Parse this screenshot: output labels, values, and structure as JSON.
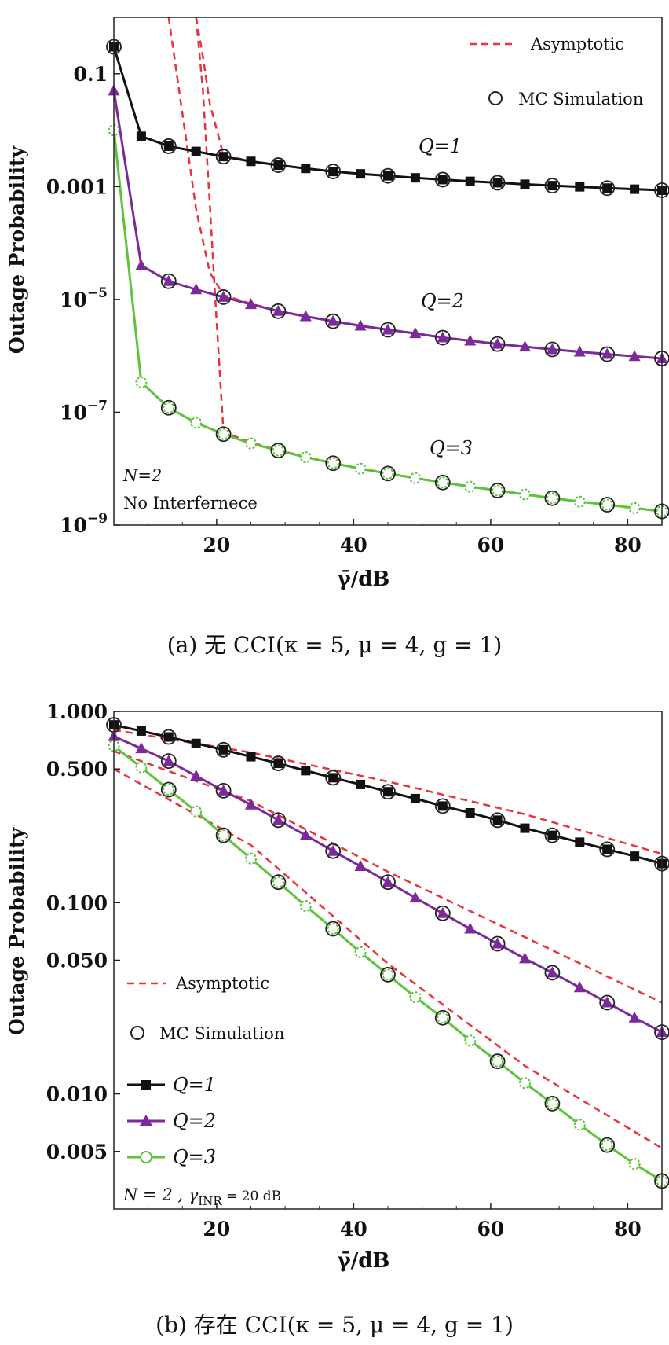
{
  "chart_data": [
    {
      "type": "line",
      "panel": "a",
      "caption": "(a)   无 CCI(κ = 5, μ = 4, g = 1)",
      "xlabel": "γ̄/dB",
      "ylabel": "Outage Probability",
      "xlim": [
        5,
        85
      ],
      "ylim": [
        1e-09,
        1
      ],
      "yscale": "log",
      "xticks": [
        20,
        40,
        60,
        80
      ],
      "yticks": [
        {
          "value": 0.1,
          "label": "0.1"
        },
        {
          "value": 0.001,
          "label": "0.001"
        },
        {
          "value": 1e-05,
          "label": "10−5",
          "base": "10",
          "exp": "−5"
        },
        {
          "value": 1e-07,
          "label": "10−7",
          "base": "10",
          "exp": "−7"
        },
        {
          "value": 1e-09,
          "label": "10−9",
          "base": "10",
          "exp": "−9"
        }
      ],
      "legend": {
        "placement": "top-right",
        "items": [
          "Asymptotic",
          "MC Simulation"
        ]
      },
      "annotations": {
        "n": "N=2",
        "note": "No Interfernece"
      },
      "series": [
        {
          "name": "Q=1",
          "marker": "square",
          "color": "#111111",
          "x": [
            5,
            9,
            13,
            17,
            21,
            25,
            29,
            33,
            37,
            41,
            45,
            49,
            53,
            57,
            61,
            65,
            69,
            73,
            77,
            81,
            85
          ],
          "y": [
            0.3,
            0.0078,
            0.0052,
            0.0042,
            0.0034,
            0.0028,
            0.0024,
            0.0021,
            0.00185,
            0.00168,
            0.00155,
            0.00143,
            0.00133,
            0.00124,
            0.00117,
            0.0011,
            0.00104,
            0.00099,
            0.00094,
            0.0009,
            0.00086
          ],
          "mc_x": [
            5,
            13,
            21,
            29,
            37,
            45,
            53,
            61,
            69,
            77,
            85
          ],
          "mc_y": [
            0.3,
            0.0052,
            0.0034,
            0.0024,
            0.00185,
            0.00155,
            0.00133,
            0.00117,
            0.00104,
            0.00094,
            0.00086
          ],
          "asym_x": [
            17,
            18,
            19,
            21,
            25,
            29,
            33,
            37,
            41,
            45,
            49,
            53,
            57,
            61,
            65,
            69,
            73,
            77,
            81,
            85
          ],
          "asym_y": [
            1,
            0.2,
            0.03,
            0.0036,
            0.0028,
            0.0024,
            0.0021,
            0.00185,
            0.00168,
            0.00155,
            0.00143,
            0.00133,
            0.00124,
            0.00117,
            0.0011,
            0.00104,
            0.00099,
            0.00094,
            0.0009,
            0.00086
          ]
        },
        {
          "name": "Q=2",
          "marker": "triangle",
          "color": "#7a2a9a",
          "x": [
            5,
            9,
            13,
            17,
            21,
            25,
            29,
            33,
            37,
            41,
            45,
            49,
            53,
            57,
            61,
            65,
            69,
            73,
            77,
            81,
            85
          ],
          "y": [
            0.05,
            4e-05,
            2.1e-05,
            1.5e-05,
            1.1e-05,
            8.2e-06,
            6.2e-06,
            5e-06,
            4.1e-06,
            3.4e-06,
            2.9e-06,
            2.5e-06,
            2.1e-06,
            1.85e-06,
            1.62e-06,
            1.45e-06,
            1.3e-06,
            1.18e-06,
            1.07e-06,
            9.8e-07,
            9e-07
          ],
          "mc_x": [
            13,
            21,
            29,
            37,
            45,
            53,
            61,
            69,
            77,
            85
          ],
          "mc_y": [
            2.1e-05,
            1.1e-05,
            6.2e-06,
            4.1e-06,
            2.9e-06,
            2.1e-06,
            1.62e-06,
            1.3e-06,
            1.07e-06,
            9e-07
          ],
          "asym_x": [
            13,
            15,
            17,
            19,
            21,
            25,
            29,
            33,
            37,
            41,
            45,
            49,
            53,
            57,
            61,
            65,
            69,
            73,
            77,
            81,
            85
          ],
          "asym_y": [
            1,
            0.02,
            0.0004,
            3e-05,
            1.2e-05,
            8.4e-06,
            6.3e-06,
            5.05e-06,
            4.15e-06,
            3.45e-06,
            2.93e-06,
            2.52e-06,
            2.12e-06,
            1.87e-06,
            1.63e-06,
            1.46e-06,
            1.31e-06,
            1.19e-06,
            1.08e-06,
            9.9e-07,
            9e-07
          ]
        },
        {
          "name": "Q=3",
          "marker": "circle-open",
          "color": "#5cc33a",
          "x": [
            5,
            9,
            13,
            17,
            21,
            25,
            29,
            33,
            37,
            41,
            45,
            49,
            53,
            57,
            61,
            65,
            69,
            73,
            77,
            81,
            85
          ],
          "y": [
            0.01,
            3.4e-07,
            1.2e-07,
            6.5e-08,
            4.1e-08,
            2.8e-08,
            2.1e-08,
            1.6e-08,
            1.25e-08,
            1e-08,
            8.2e-09,
            6.8e-09,
            5.7e-09,
            4.8e-09,
            4.1e-09,
            3.5e-09,
            3e-09,
            2.6e-09,
            2.3e-09,
            2e-09,
            1.75e-09
          ],
          "mc_x": [
            13,
            21,
            29,
            37,
            45,
            53,
            61,
            69,
            77,
            85
          ],
          "mc_y": [
            1.2e-07,
            4.1e-08,
            2.1e-08,
            1.25e-08,
            8.2e-09,
            5.7e-09,
            4.1e-09,
            3e-09,
            2.3e-09,
            1.75e-09
          ],
          "asym_x": [
            17,
            18,
            19,
            20,
            21,
            25,
            29,
            33,
            37,
            41,
            45,
            49,
            53,
            57,
            61,
            65,
            69,
            73,
            77,
            81,
            85
          ],
          "asym_y": [
            1,
            0.05,
            0.0005,
            4e-06,
            4.5e-08,
            2.9e-08,
            2.15e-08,
            1.62e-08,
            1.27e-08,
            1.01e-08,
            8.3e-09,
            6.9e-09,
            5.75e-09,
            4.85e-09,
            4.12e-09,
            3.52e-09,
            3.02e-09,
            2.62e-09,
            2.31e-09,
            2.02e-09,
            1.76e-09
          ]
        }
      ]
    },
    {
      "type": "line",
      "panel": "b",
      "caption": "(b)   存在 CCI(κ = 5, μ = 4, g = 1)",
      "xlabel": "γ̄/dB",
      "ylabel": "Outage Probability",
      "xlim": [
        5,
        85
      ],
      "ylim": [
        0.0025,
        1
      ],
      "yscale": "log",
      "xticks": [
        20,
        40,
        60,
        80
      ],
      "yticks": [
        {
          "value": 1.0,
          "label": "1.000"
        },
        {
          "value": 0.5,
          "label": "0.500"
        },
        {
          "value": 0.1,
          "label": "0.100"
        },
        {
          "value": 0.05,
          "label": "0.050"
        },
        {
          "value": 0.01,
          "label": "0.010"
        },
        {
          "value": 0.005,
          "label": "0.005"
        }
      ],
      "legend": {
        "placement": "left",
        "items": [
          "Asymptotic",
          "MC Simulation",
          "Q=1",
          "Q=2",
          "Q=3"
        ]
      },
      "annotations": {
        "n": "N = 2 , γINR = 20 dB",
        "n_prefix": "N = 2 , γ",
        "n_sub": "INR",
        "n_suffix": " = 20 dB"
      },
      "series": [
        {
          "name": "Q=1",
          "marker": "square",
          "color": "#111111",
          "x": [
            5,
            9,
            13,
            17,
            21,
            25,
            29,
            33,
            37,
            41,
            45,
            49,
            53,
            57,
            61,
            65,
            69,
            73,
            77,
            81,
            85
          ],
          "y": [
            0.85,
            0.79,
            0.735,
            0.68,
            0.63,
            0.58,
            0.535,
            0.49,
            0.45,
            0.415,
            0.38,
            0.35,
            0.32,
            0.295,
            0.27,
            0.245,
            0.225,
            0.207,
            0.19,
            0.175,
            0.16
          ],
          "mc_x": [
            5,
            13,
            21,
            29,
            37,
            45,
            53,
            61,
            69,
            77,
            85
          ],
          "mc_y": [
            0.85,
            0.735,
            0.63,
            0.535,
            0.45,
            0.38,
            0.32,
            0.27,
            0.225,
            0.19,
            0.16
          ],
          "asym_x": [
            5,
            25,
            45,
            65,
            85
          ],
          "asym_y": [
            0.8,
            0.61,
            0.43,
            0.29,
            0.18
          ]
        },
        {
          "name": "Q=2",
          "marker": "triangle",
          "color": "#7a2a9a",
          "x": [
            5,
            9,
            13,
            17,
            21,
            25,
            29,
            33,
            37,
            41,
            45,
            49,
            53,
            57,
            61,
            65,
            69,
            73,
            77,
            81,
            85
          ],
          "y": [
            0.74,
            0.64,
            0.55,
            0.46,
            0.385,
            0.325,
            0.27,
            0.225,
            0.186,
            0.155,
            0.128,
            0.106,
            0.088,
            0.073,
            0.061,
            0.051,
            0.043,
            0.036,
            0.03,
            0.025,
            0.021
          ],
          "mc_x": [
            13,
            21,
            29,
            37,
            45,
            53,
            61,
            69,
            77,
            85
          ],
          "mc_y": [
            0.55,
            0.385,
            0.27,
            0.186,
            0.128,
            0.088,
            0.061,
            0.043,
            0.03,
            0.021
          ],
          "asym_x": [
            5,
            25,
            45,
            65,
            85
          ],
          "asym_y": [
            0.62,
            0.34,
            0.145,
            0.066,
            0.03
          ]
        },
        {
          "name": "Q=3",
          "marker": "circle-open",
          "color": "#5cc33a",
          "x": [
            5,
            9,
            13,
            17,
            21,
            25,
            29,
            33,
            37,
            41,
            45,
            49,
            53,
            57,
            61,
            65,
            69,
            73,
            77,
            81,
            85
          ],
          "y": [
            0.66,
            0.51,
            0.39,
            0.3,
            0.225,
            0.17,
            0.128,
            0.096,
            0.073,
            0.055,
            0.042,
            0.032,
            0.025,
            0.019,
            0.0148,
            0.0114,
            0.0089,
            0.0069,
            0.0054,
            0.0043,
            0.0035
          ],
          "mc_x": [
            13,
            21,
            29,
            37,
            45,
            53,
            61,
            69,
            77,
            85
          ],
          "mc_y": [
            0.39,
            0.225,
            0.128,
            0.073,
            0.042,
            0.025,
            0.0148,
            0.0089,
            0.0054,
            0.0035
          ],
          "asym_x": [
            5,
            25,
            45,
            65,
            85
          ],
          "asym_y": [
            0.5,
            0.2,
            0.048,
            0.014,
            0.0052
          ]
        }
      ]
    }
  ],
  "legend_style": {
    "asymptotic_color": "#e8333f",
    "mc_marker_color": "#222222"
  }
}
